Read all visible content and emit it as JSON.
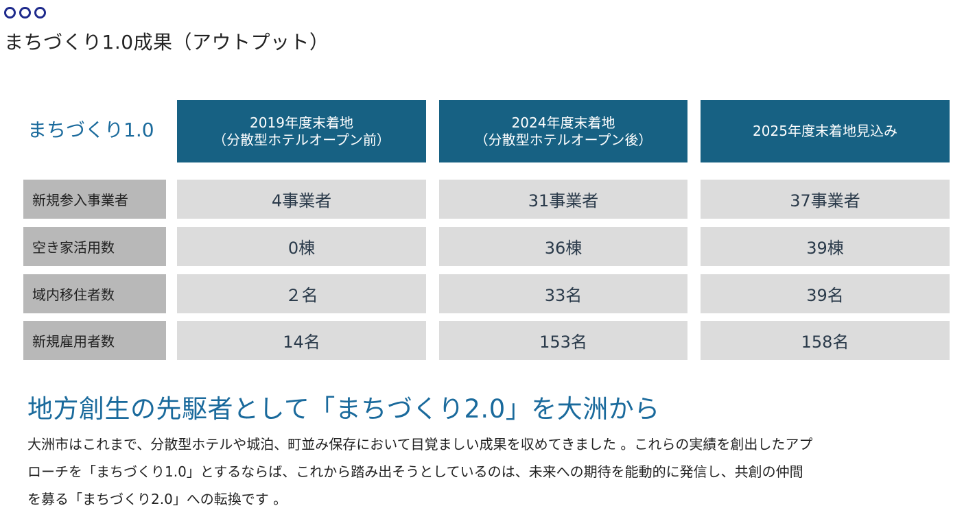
{
  "header": {
    "title": "まちづくり1.0成果（アウトプット）"
  },
  "table": {
    "label": "まちづくり1.0",
    "columns": [
      {
        "line1": "2019年度末着地",
        "line2": "（分散型ホテルオープン前）"
      },
      {
        "line1": "2024年度末着地",
        "line2": "（分散型ホテルオープン後）"
      },
      {
        "line1": "2025年度末着地見込み",
        "line2": ""
      }
    ],
    "rows": [
      {
        "label": "新規参入事業者",
        "values": [
          "4事業者",
          "31事業者",
          "37事業者"
        ]
      },
      {
        "label": "空き家活用数",
        "values": [
          "0棟",
          "36棟",
          "39棟"
        ]
      },
      {
        "label": "域内移住者数",
        "values": [
          "２名",
          "33名",
          "39名"
        ]
      },
      {
        "label": "新規雇用者数",
        "values": [
          "14名",
          "153名",
          "158名"
        ]
      }
    ]
  },
  "section": {
    "heading": "地方創生の先駆者として「まちづくり2.0」を大洲から",
    "body_lines": [
      "大洲市はこれまで、分散型ホテルや城泊、町並み保存において目覚ましい成果を収めてきました 。これらの実績を創出したアプ",
      "ローチを「まちづくり1.0」とするならば、これから踏み出そうとしているのは、未来への期待を能動的に発信し、共創の仲間",
      "を募る「まちづくり2.0」への転換です 。"
    ]
  },
  "colors": {
    "accent": "#176183",
    "heading_text": "#1a6a9c",
    "row_header_bg": "#b8b8b8",
    "cell_bg": "#dcdcdc",
    "dots": "#1e2a8c"
  }
}
